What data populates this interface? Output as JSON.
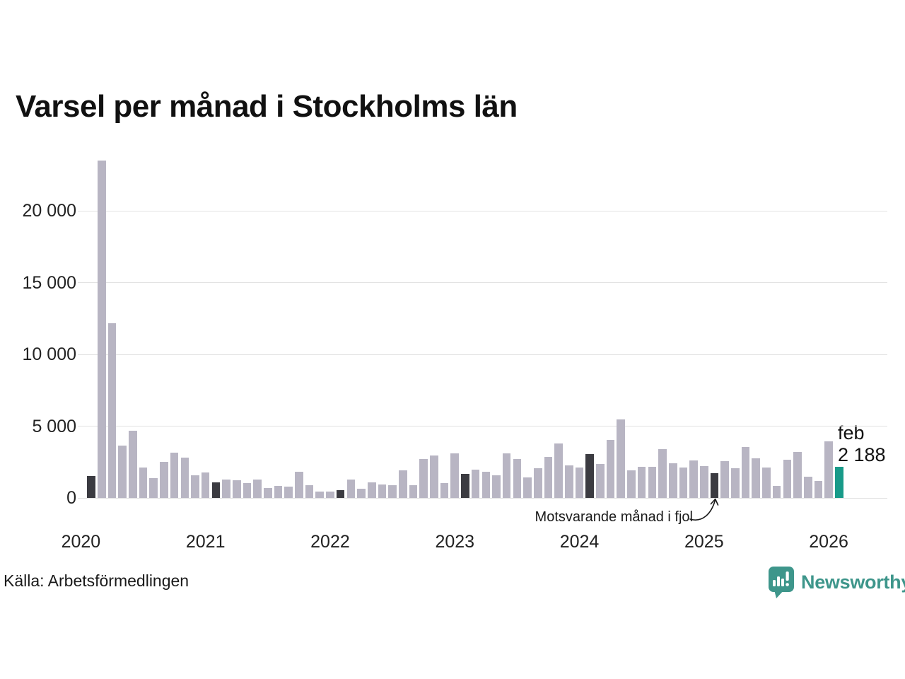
{
  "title": "Varsel per månad i Stockholms län",
  "source": "Källa: Arbetsförmedlingen",
  "annotation": {
    "text": "Motsvarande månad i fjol",
    "points_to_month": "2025-02"
  },
  "current_label": {
    "month": "feb",
    "value": "2 188"
  },
  "branding": {
    "wordmark": "Newsworthy",
    "icon": "newsworthy-speech-bubble-chart-icon",
    "color": "#3E968B"
  },
  "colors": {
    "bar": "#B8B5C3",
    "highlight_february": "#3B3B41",
    "current_month": "#189A89",
    "gridline": "#E2E2E2",
    "text": "#1A1A1A"
  },
  "chart_data": {
    "type": "bar",
    "title": "Varsel per månad i Stockholms län",
    "xlabel": "",
    "ylabel": "",
    "ylim": [
      0,
      23870
    ],
    "grid": "horizontal",
    "legend": "none",
    "y_ticks": [
      0,
      5000,
      10000,
      15000,
      20000
    ],
    "y_tick_labels": [
      "0",
      "5 000",
      "10 000",
      "15 000",
      "20 000"
    ],
    "start_month": "2020-02",
    "frequency": "monthly",
    "months": [
      "2020-02",
      "2020-03",
      "2020-04",
      "2020-05",
      "2020-06",
      "2020-07",
      "2020-08",
      "2020-09",
      "2020-10",
      "2020-11",
      "2020-12",
      "2021-01",
      "2021-02",
      "2021-03",
      "2021-04",
      "2021-05",
      "2021-06",
      "2021-07",
      "2021-08",
      "2021-09",
      "2021-10",
      "2021-11",
      "2021-12",
      "2022-01",
      "2022-02",
      "2022-03",
      "2022-04",
      "2022-05",
      "2022-06",
      "2022-07",
      "2022-08",
      "2022-09",
      "2022-10",
      "2022-11",
      "2022-12",
      "2023-01",
      "2023-02",
      "2023-03",
      "2023-04",
      "2023-05",
      "2023-06",
      "2023-07",
      "2023-08",
      "2023-09",
      "2023-10",
      "2023-11",
      "2023-12",
      "2024-01",
      "2024-02",
      "2024-03",
      "2024-04",
      "2024-05",
      "2024-06",
      "2024-07",
      "2024-08",
      "2024-09",
      "2024-10",
      "2024-11",
      "2024-12",
      "2025-01",
      "2025-02",
      "2025-03",
      "2025-04",
      "2025-05",
      "2025-06",
      "2025-07",
      "2025-08",
      "2025-09",
      "2025-10",
      "2025-11",
      "2025-12",
      "2026-01",
      "2026-02"
    ],
    "series": [
      {
        "name": "Varsel per månad",
        "values": [
          1530,
          23540,
          12190,
          3640,
          4680,
          2140,
          1360,
          2530,
          3150,
          2820,
          1590,
          1790,
          1070,
          1300,
          1230,
          1040,
          1300,
          710,
          840,
          780,
          1820,
          880,
          420,
          460,
          550,
          1300,
          620,
          1100,
          940,
          880,
          1920,
          880,
          2700,
          2960,
          1040,
          3120,
          1690,
          1980,
          1820,
          1560,
          3120,
          2700,
          1430,
          2080,
          2860,
          3800,
          2270,
          2140,
          3080,
          2370,
          4060,
          5490,
          1920,
          2180,
          2180,
          3420,
          2400,
          2110,
          2630,
          2210,
          1750,
          2550,
          2090,
          3530,
          2750,
          2120,
          820,
          2650,
          3200,
          1500,
          1180,
          3950,
          2188
        ]
      }
    ],
    "february_highlight_indices": [
      0,
      12,
      24,
      36,
      48,
      60
    ],
    "current_month_index": 72,
    "current_month_value_label": "feb 2 188",
    "year_ticks": [
      {
        "label": "2020",
        "jan_index": -1
      },
      {
        "label": "2021",
        "jan_index": 11
      },
      {
        "label": "2022",
        "jan_index": 23
      },
      {
        "label": "2023",
        "jan_index": 35
      },
      {
        "label": "2024",
        "jan_index": 47
      },
      {
        "label": "2025",
        "jan_index": 59
      },
      {
        "label": "2026",
        "jan_index": 71
      }
    ]
  }
}
